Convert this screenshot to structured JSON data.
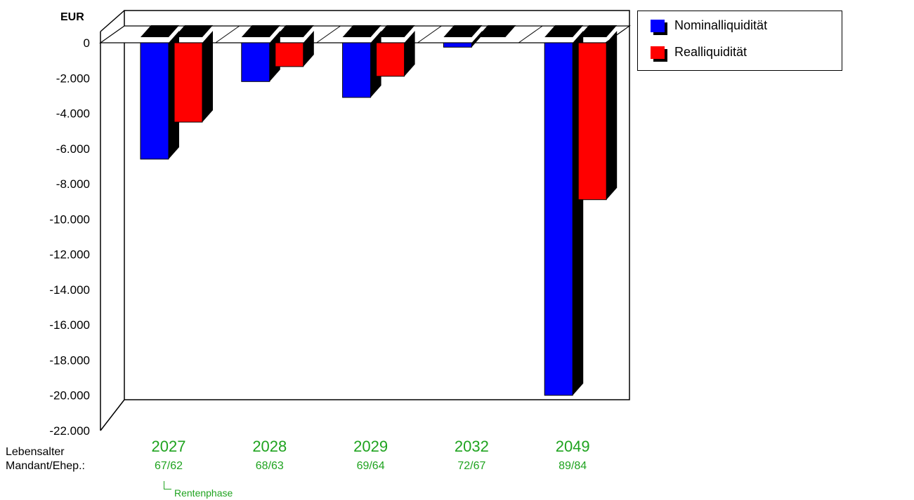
{
  "chart_data": {
    "type": "bar",
    "unit_label": "EUR",
    "categories": [
      "2027",
      "2028",
      "2029",
      "2032",
      "2049"
    ],
    "category_sublabels": [
      "67/62",
      "68/63",
      "69/64",
      "72/67",
      "89/84"
    ],
    "row_labels": [
      "Lebensalter",
      "Mandant/Ehep.:"
    ],
    "phase_annotation": "Rentenphase",
    "series": [
      {
        "name": "Nominalliquidität",
        "color": "#0000ff",
        "values": [
          -6600,
          -2200,
          -3100,
          -250,
          -20000
        ]
      },
      {
        "name": "Realliquidität",
        "color": "#ff0000",
        "values": [
          -4500,
          -1350,
          -1900,
          0,
          -8900
        ]
      }
    ],
    "y_ticks": [
      "0",
      "-2.000",
      "-4.000",
      "-6.000",
      "-8.000",
      "-10.000",
      "-12.000",
      "-14.000",
      "-16.000",
      "-18.000",
      "-20.000",
      "-22.000"
    ],
    "ylim": [
      -22000,
      0
    ],
    "grid": false,
    "legend_position": "top-right",
    "label_color": "#1fa31f"
  }
}
